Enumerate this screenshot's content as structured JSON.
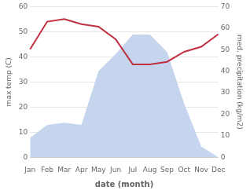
{
  "chart_data": {
    "type": "line",
    "categories": [
      "Jan",
      "Feb",
      "Mar",
      "Apr",
      "May",
      "Jun",
      "Jul",
      "Aug",
      "Sep",
      "Oct",
      "Nov",
      "Dec"
    ],
    "xlabel": "date (month)",
    "ylabel": "max temp (C)",
    "y2label": "med. precipitation (kg/m2)",
    "series": [
      {
        "type": "line",
        "color": "#c03040",
        "values": [
          43,
          54,
          55,
          53,
          52,
          47,
          37,
          37,
          38,
          42,
          44,
          49
        ]
      },
      {
        "type": "area",
        "color": "#c5d5ee",
        "axis": "y2",
        "values": [
          9,
          15,
          16,
          15,
          40,
          48,
          57,
          57,
          49,
          25,
          5,
          0
        ]
      }
    ],
    "ylim": [
      0,
      60
    ],
    "yticks": [
      0,
      10,
      20,
      30,
      40,
      50,
      60
    ],
    "y2lim": [
      0,
      70
    ],
    "y2ticks": [
      0,
      10,
      20,
      30,
      40,
      50,
      60,
      70
    ],
    "grid": true
  }
}
